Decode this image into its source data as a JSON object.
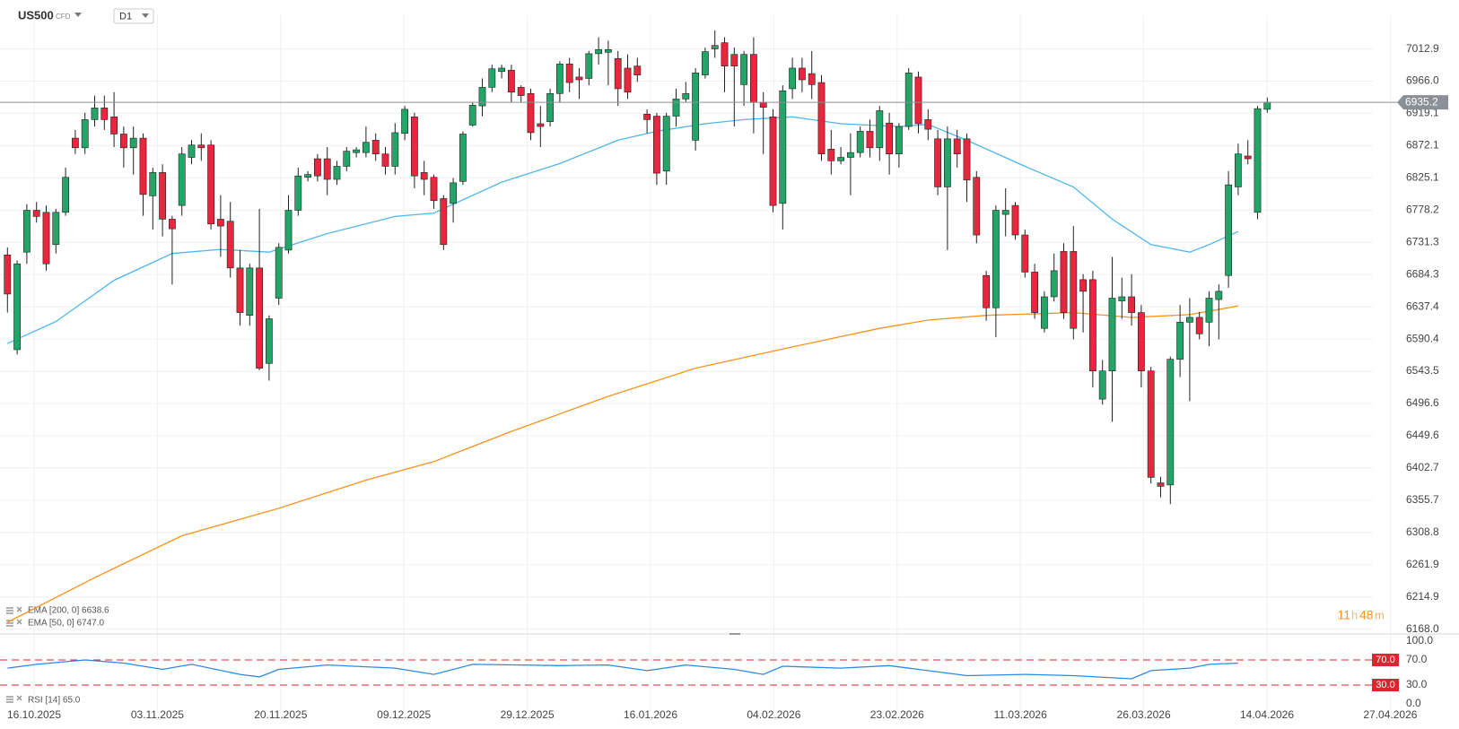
{
  "chart_data": {
    "type": "candlestick",
    "title": "US500",
    "subtitle": "CFD",
    "timeframe": "D1",
    "timer_hours": "11",
    "timer_hours_unit": "h",
    "timer_minutes": "48",
    "timer_minutes_unit": "m",
    "up_color": "#22a566",
    "down_color": "#e8263d",
    "ylim": [
      6161,
      7062
    ],
    "yticks": [
      7012.9,
      {
        "value": 6966.0,
        "label": "6966.0"
      },
      6919.1,
      6872.1,
      6825.1,
      6778.2,
      6731.3,
      6684.3,
      6637.4,
      6590.4,
      6543.5,
      6496.6,
      6449.6,
      6402.7,
      6355.7,
      6308.8,
      6261.9,
      6214.9,
      {
        "value": 6168.0,
        "label": "6168.0"
      }
    ],
    "current_price": 6935.2,
    "date_labels": [
      "16.10.2025",
      "03.11.2025",
      "20.11.2025",
      "09.12.2025",
      "29.12.2025",
      "16.01.2026",
      "04.02.2026",
      "23.02.2026",
      "11.03.2026",
      "26.03.2026",
      "14.04.2026",
      "27.04.2026"
    ],
    "ohlc": [
      [
        6713,
        6724,
        6629,
        6656
      ],
      [
        6575,
        6705,
        6568,
        6700
      ],
      [
        6717,
        6787,
        6700,
        6778
      ],
      [
        6778,
        6790,
        6760,
        6769
      ],
      [
        6775,
        6785,
        6690,
        6700
      ],
      [
        6728,
        6780,
        6715,
        6775
      ],
      [
        6775,
        6840,
        6770,
        6826
      ],
      [
        6883,
        6895,
        6860,
        6869
      ],
      [
        6869,
        6920,
        6860,
        6910
      ],
      [
        6910,
        6945,
        6900,
        6927
      ],
      [
        6927,
        6945,
        6895,
        6910
      ],
      [
        6914,
        6950,
        6870,
        6889
      ],
      [
        6889,
        6900,
        6840,
        6869
      ],
      [
        6869,
        6900,
        6830,
        6883
      ],
      [
        6883,
        6890,
        6770,
        6801
      ],
      [
        6799,
        6840,
        6750,
        6833
      ],
      [
        6833,
        6845,
        6740,
        6765
      ],
      [
        6765,
        6770,
        6670,
        6751
      ],
      [
        6785,
        6870,
        6770,
        6860
      ],
      [
        6855,
        6880,
        6845,
        6873
      ],
      [
        6873,
        6890,
        6850,
        6869
      ],
      [
        6873,
        6880,
        6750,
        6758
      ],
      [
        6765,
        6800,
        6710,
        6755
      ],
      [
        6762,
        6790,
        6680,
        6694
      ],
      [
        6694,
        6720,
        6610,
        6629
      ],
      [
        6625,
        6700,
        6610,
        6694
      ],
      [
        6694,
        6780,
        6545,
        6548
      ],
      [
        6555,
        6625,
        6530,
        6620
      ],
      [
        6650,
        6730,
        6640,
        6724
      ],
      [
        6720,
        6800,
        6715,
        6778
      ],
      [
        6778,
        6840,
        6770,
        6828
      ],
      [
        6826,
        6835,
        6820,
        6830
      ],
      [
        6853,
        6860,
        6820,
        6828
      ],
      [
        6853,
        6870,
        6800,
        6823
      ],
      [
        6823,
        6850,
        6815,
        6842
      ],
      [
        6842,
        6870,
        6835,
        6864
      ],
      [
        6862,
        6870,
        6855,
        6866
      ],
      [
        6862,
        6900,
        6855,
        6877
      ],
      [
        6880,
        6890,
        6850,
        6860
      ],
      [
        6860,
        6870,
        6830,
        6842
      ],
      [
        6842,
        6905,
        6830,
        6891
      ],
      [
        6890,
        6930,
        6880,
        6925
      ],
      [
        6914,
        6920,
        6810,
        6828
      ],
      [
        6833,
        6850,
        6800,
        6823
      ],
      [
        6826,
        6830,
        6780,
        6792
      ],
      [
        6795,
        6800,
        6720,
        6728
      ],
      [
        6788,
        6825,
        6760,
        6818
      ],
      [
        6820,
        6893,
        6815,
        6889
      ],
      [
        6902,
        6935,
        6900,
        6931
      ],
      [
        6930,
        6970,
        6915,
        6957
      ],
      [
        6957,
        6990,
        6950,
        6984
      ],
      [
        6980,
        6990,
        6970,
        6985
      ],
      [
        6982,
        6990,
        6935,
        6950
      ],
      [
        6957,
        6960,
        6935,
        6945
      ],
      [
        6948,
        6955,
        6880,
        6891
      ],
      [
        6904,
        6930,
        6870,
        6900
      ],
      [
        6907,
        6955,
        6900,
        6948
      ],
      [
        6948,
        6995,
        6935,
        6991
      ],
      [
        6991,
        7000,
        6950,
        6964
      ],
      [
        6972,
        6985,
        6940,
        6968
      ],
      [
        6970,
        7010,
        6960,
        7006
      ],
      [
        7006,
        7030,
        6990,
        7012
      ],
      [
        7008,
        7025,
        6960,
        7012
      ],
      [
        6999,
        7010,
        6930,
        6955
      ],
      [
        6985,
        7005,
        6940,
        6950
      ],
      [
        6988,
        7000,
        6965,
        6975
      ],
      [
        6918,
        6925,
        6890,
        6910
      ],
      [
        6915,
        6920,
        6815,
        6832
      ],
      [
        6835,
        6920,
        6815,
        6915
      ],
      [
        6915,
        6955,
        6900,
        6940
      ],
      [
        6940,
        6965,
        6935,
        6948
      ],
      [
        6880,
        6985,
        6865,
        6978
      ],
      [
        6975,
        7015,
        6970,
        7009
      ],
      [
        7013,
        7040,
        7000,
        7018
      ],
      [
        7022,
        7030,
        6950,
        6988
      ],
      [
        7005,
        7015,
        6900,
        6988
      ],
      [
        6961,
        7010,
        6930,
        7005
      ],
      [
        7005,
        7030,
        6890,
        6935
      ],
      [
        6935,
        6950,
        6860,
        6928
      ],
      [
        6914,
        6925,
        6775,
        6785
      ],
      [
        6788,
        6960,
        6750,
        6952
      ],
      [
        6955,
        7000,
        6940,
        6985
      ],
      [
        6985,
        7000,
        6950,
        6968
      ],
      [
        6977,
        7010,
        6940,
        6961
      ],
      [
        6964,
        6975,
        6850,
        6860
      ],
      [
        6867,
        6895,
        6830,
        6850
      ],
      [
        6850,
        6870,
        6845,
        6855
      ],
      [
        6855,
        6890,
        6800,
        6862
      ],
      [
        6862,
        6900,
        6855,
        6893
      ],
      [
        6893,
        6910,
        6855,
        6869
      ],
      [
        6869,
        6930,
        6850,
        6923
      ],
      [
        6905,
        6920,
        6830,
        6860
      ],
      [
        6860,
        6905,
        6840,
        6900
      ],
      [
        6900,
        6985,
        6895,
        6978
      ],
      [
        6972,
        6980,
        6890,
        6904
      ],
      [
        6910,
        6925,
        6880,
        6896
      ],
      [
        6882,
        6895,
        6800,
        6812
      ],
      [
        6812,
        6900,
        6720,
        6882
      ],
      [
        6882,
        6895,
        6840,
        6860
      ],
      [
        6882,
        6890,
        6790,
        6822
      ],
      [
        6826,
        6835,
        6730,
        6742
      ],
      [
        6683,
        6690,
        6617,
        6636
      ],
      [
        6636,
        6785,
        6593,
        6778
      ],
      [
        6772,
        6810,
        6740,
        6778
      ],
      [
        6785,
        6790,
        6735,
        6742
      ],
      [
        6742,
        6750,
        6680,
        6688
      ],
      [
        6688,
        6700,
        6620,
        6629
      ],
      [
        6606,
        6660,
        6600,
        6652
      ],
      [
        6652,
        6715,
        6645,
        6690
      ],
      [
        6718,
        6730,
        6620,
        6629
      ],
      [
        6718,
        6755,
        6590,
        6606
      ],
      [
        6677,
        6685,
        6600,
        6660
      ],
      [
        6677,
        6690,
        6520,
        6544
      ],
      [
        6503,
        6560,
        6495,
        6544
      ],
      [
        6544,
        6710,
        6470,
        6650
      ],
      [
        6646,
        6680,
        6620,
        6652
      ],
      [
        6652,
        6685,
        6610,
        6629
      ],
      [
        6629,
        6640,
        6520,
        6544
      ],
      [
        6544,
        6550,
        6380,
        6389
      ],
      [
        6381,
        6390,
        6360,
        6376
      ],
      [
        6378,
        6565,
        6350,
        6561
      ],
      [
        6561,
        6640,
        6535,
        6615
      ],
      [
        6615,
        6650,
        6500,
        6622
      ],
      [
        6622,
        6630,
        6590,
        6598
      ],
      [
        6615,
        6660,
        6580,
        6650
      ],
      [
        6648,
        6670,
        6590,
        6660
      ],
      [
        6683,
        6835,
        6665,
        6815
      ],
      [
        6812,
        6875,
        6800,
        6860
      ],
      [
        6857,
        6880,
        6845,
        6853
      ],
      [
        6775,
        6930,
        6765,
        6926
      ],
      [
        6925,
        6942,
        6920,
        6935.2
      ]
    ],
    "overlays": [
      {
        "name": "EMA [200, 0] 6638.6",
        "color": "#f7931e",
        "x": [
          0,
          9,
          18,
          28,
          37,
          44,
          52,
          62,
          71,
          81,
          90,
          95,
          101,
          110,
          116,
          122,
          127
        ],
        "values": [
          6178,
          6243,
          6304,
          6344,
          6385,
          6412,
          6456,
          6507,
          6548,
          6579,
          6606,
          6618,
          6625,
          6629,
          6622,
          6626,
          6638.6
        ]
      },
      {
        "name": "EMA [50, 0] 6747.0",
        "color": "#4fb6ea",
        "x": [
          0,
          5,
          11,
          17,
          22,
          27,
          33,
          40,
          44,
          51,
          57,
          63,
          67,
          72,
          76,
          81,
          86,
          92,
          95,
          99,
          105,
          110,
          114,
          118,
          122,
          124,
          127
        ],
        "values": [
          6584,
          6616,
          6676,
          6715,
          6721,
          6717,
          6744,
          6769,
          6774,
          6819,
          6846,
          6880,
          6893,
          6904,
          6910,
          6914,
          6904,
          6900,
          6903,
          6880,
          6842,
          6812,
          6765,
          6728,
          6717,
          6728,
          6747
        ]
      }
    ],
    "rsi": {
      "name": "RSI [14] 65.0",
      "color": "#2b8be0",
      "ylim": [
        0,
        100
      ],
      "yticks": [
        {
          "value": 100,
          "label": "100.0"
        },
        {
          "value": 70,
          "label": "70.0"
        },
        {
          "value": 30,
          "label": "30.0"
        },
        {
          "value": 0,
          "label": "0.0"
        }
      ],
      "levels": [
        {
          "value": 70,
          "label": "70.0",
          "color": "#d9262f"
        },
        {
          "value": 30,
          "label": "30.0",
          "color": "#d9262f"
        }
      ],
      "x": [
        0,
        3,
        8,
        12,
        16,
        19,
        24,
        26,
        28,
        33,
        40,
        44,
        48,
        53,
        57,
        62,
        66,
        70,
        75,
        78,
        80,
        86,
        91,
        94,
        99,
        105,
        110,
        116,
        118,
        122,
        124,
        127
      ],
      "values": [
        57,
        63,
        70,
        65,
        55,
        63,
        47,
        43,
        55,
        62,
        57,
        47,
        63,
        62,
        61,
        62,
        53,
        62,
        55,
        47,
        60,
        57,
        61,
        55,
        45,
        47,
        45,
        40,
        53,
        57,
        63,
        65
      ]
    }
  }
}
